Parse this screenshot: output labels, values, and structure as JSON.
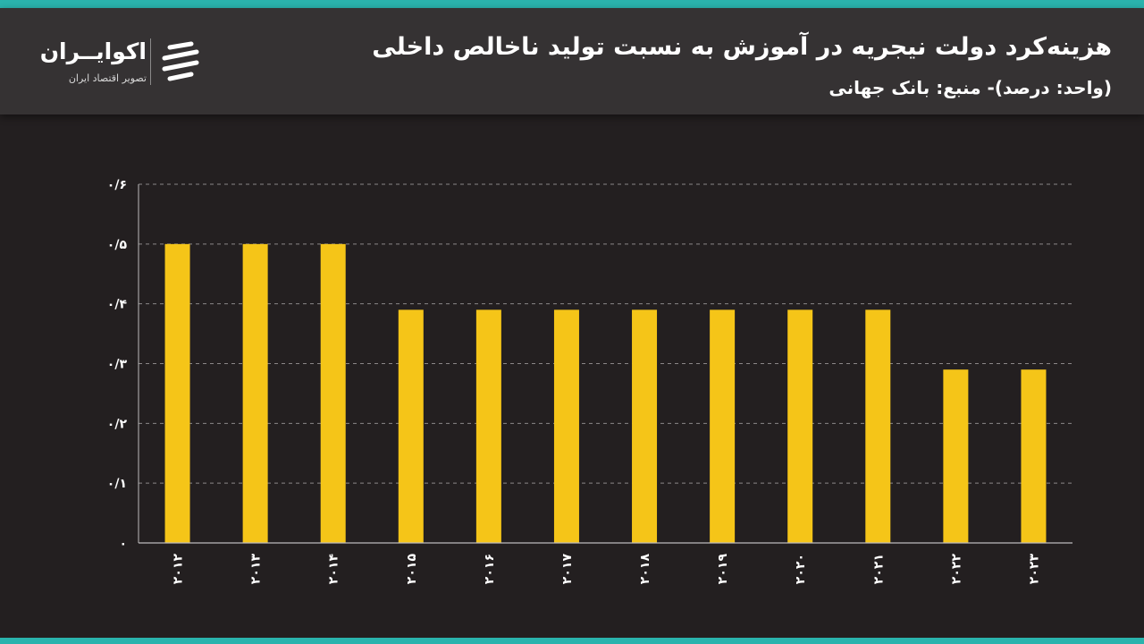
{
  "header": {
    "title": "هزینه‌کرد دولت نیجریه در آموزش به نسبت تولید ناخالص داخلی",
    "subtitle": "(واحد: درصد)- منبع: بانک جهانی"
  },
  "logo": {
    "name": "اکوایــران",
    "tagline": "تصویر اقتصاد ایران"
  },
  "colors": {
    "accent_stripe": "#2ab3ad",
    "bar": "#f5c518",
    "background": "#231f20",
    "header_background": "#353233"
  },
  "chart_data": {
    "type": "bar",
    "categories": [
      "۲۰۱۲",
      "۲۰۱۳",
      "۲۰۱۴",
      "۲۰۱۵",
      "۲۰۱۶",
      "۲۰۱۷",
      "۲۰۱۸",
      "۲۰۱۹",
      "۲۰۲۰",
      "۲۰۲۱",
      "۲۰۲۲",
      "۲۰۲۳"
    ],
    "values": [
      0.5,
      0.5,
      0.5,
      0.39,
      0.39,
      0.39,
      0.39,
      0.39,
      0.39,
      0.39,
      0.29,
      0.29
    ],
    "ylim": [
      0,
      0.6
    ],
    "yticks": [
      0,
      0.1,
      0.2,
      0.3,
      0.4,
      0.5,
      0.6
    ],
    "ytick_labels": [
      "۰",
      "۰/۱",
      "۰/۲",
      "۰/۳",
      "۰/۴",
      "۰/۵",
      "۰/۶"
    ],
    "grid": true,
    "grid_style": "dashed"
  }
}
